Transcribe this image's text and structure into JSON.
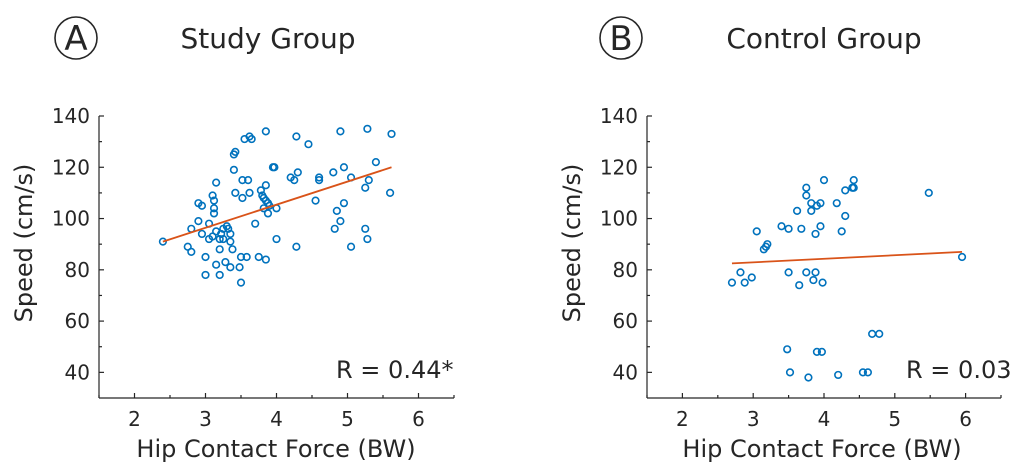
{
  "chart_data": [
    {
      "type": "scatter",
      "panel": "A",
      "title": "Study Group",
      "xlabel": "Hip Contact Force (BW)",
      "ylabel": "Speed (cm/s)",
      "xlim": [
        1.5,
        6.5
      ],
      "ylim": [
        30,
        140
      ],
      "xticks": [
        2,
        3,
        4,
        5,
        6
      ],
      "yticks": [
        40,
        60,
        80,
        100,
        120,
        140
      ],
      "annotation": "R = 0.44*",
      "marker_color": "#0072BD",
      "fit_color": "#D95319",
      "fit_line": {
        "x": [
          2.4,
          5.62
        ],
        "y": [
          91,
          120
        ]
      },
      "points": [
        [
          2.4,
          91
        ],
        [
          2.75,
          89
        ],
        [
          2.8,
          87
        ],
        [
          2.8,
          96
        ],
        [
          2.9,
          106
        ],
        [
          2.95,
          105
        ],
        [
          2.9,
          99
        ],
        [
          2.95,
          94
        ],
        [
          3.0,
          85
        ],
        [
          3.0,
          78
        ],
        [
          3.05,
          98
        ],
        [
          3.05,
          92
        ],
        [
          3.1,
          93
        ],
        [
          3.1,
          109
        ],
        [
          3.12,
          107
        ],
        [
          3.12,
          104
        ],
        [
          3.12,
          102
        ],
        [
          3.15,
          114
        ],
        [
          3.15,
          95
        ],
        [
          3.15,
          82
        ],
        [
          3.2,
          92
        ],
        [
          3.2,
          88
        ],
        [
          3.2,
          78
        ],
        [
          3.22,
          94
        ],
        [
          3.25,
          96
        ],
        [
          3.25,
          92
        ],
        [
          3.28,
          83
        ],
        [
          3.3,
          97
        ],
        [
          3.32,
          96
        ],
        [
          3.35,
          94
        ],
        [
          3.35,
          91
        ],
        [
          3.35,
          81
        ],
        [
          3.38,
          88
        ],
        [
          3.4,
          125
        ],
        [
          3.42,
          126
        ],
        [
          3.4,
          119
        ],
        [
          3.42,
          110
        ],
        [
          3.48,
          81
        ],
        [
          3.5,
          75
        ],
        [
          3.5,
          85
        ],
        [
          3.52,
          108
        ],
        [
          3.52,
          115
        ],
        [
          3.55,
          131
        ],
        [
          3.58,
          85
        ],
        [
          3.6,
          115
        ],
        [
          3.62,
          132
        ],
        [
          3.62,
          110
        ],
        [
          3.65,
          131
        ],
        [
          3.7,
          98
        ],
        [
          3.75,
          85
        ],
        [
          3.78,
          111
        ],
        [
          3.8,
          109
        ],
        [
          3.82,
          104
        ],
        [
          3.82,
          108
        ],
        [
          3.85,
          134
        ],
        [
          3.85,
          113
        ],
        [
          3.85,
          107
        ],
        [
          3.85,
          84
        ],
        [
          3.88,
          106
        ],
        [
          3.88,
          102
        ],
        [
          3.9,
          105
        ],
        [
          3.95,
          120
        ],
        [
          3.97,
          120
        ],
        [
          4.0,
          104
        ],
        [
          4.0,
          92
        ],
        [
          4.2,
          116
        ],
        [
          4.25,
          115
        ],
        [
          4.28,
          132
        ],
        [
          4.3,
          118
        ],
        [
          4.28,
          89
        ],
        [
          4.45,
          129
        ],
        [
          4.55,
          107
        ],
        [
          4.6,
          115
        ],
        [
          4.6,
          116
        ],
        [
          4.8,
          118
        ],
        [
          4.85,
          103
        ],
        [
          4.82,
          96
        ],
        [
          4.9,
          134
        ],
        [
          4.9,
          99
        ],
        [
          4.95,
          106
        ],
        [
          4.95,
          120
        ],
        [
          5.05,
          89
        ],
        [
          5.05,
          116
        ],
        [
          5.25,
          96
        ],
        [
          5.25,
          112
        ],
        [
          5.28,
          92
        ],
        [
          5.28,
          135
        ],
        [
          5.3,
          115
        ],
        [
          5.4,
          122
        ],
        [
          5.6,
          110
        ],
        [
          5.62,
          133
        ]
      ]
    },
    {
      "type": "scatter",
      "panel": "B",
      "title": "Control Group",
      "xlabel": "Hip Contact Force (BW)",
      "ylabel": "Speed (cm/s)",
      "xlim": [
        1.5,
        6.5
      ],
      "ylim": [
        30,
        140
      ],
      "xticks": [
        2,
        3,
        4,
        5,
        6
      ],
      "yticks": [
        40,
        60,
        80,
        100,
        120,
        140
      ],
      "annotation": "R = 0.03",
      "marker_color": "#0072BD",
      "fit_color": "#D95319",
      "fit_line": {
        "x": [
          2.7,
          5.95
        ],
        "y": [
          82.5,
          87
        ]
      },
      "points": [
        [
          2.7,
          75
        ],
        [
          2.82,
          79
        ],
        [
          2.88,
          75
        ],
        [
          2.98,
          77
        ],
        [
          3.05,
          95
        ],
        [
          3.15,
          88
        ],
        [
          3.18,
          89
        ],
        [
          3.2,
          90
        ],
        [
          3.4,
          97
        ],
        [
          3.5,
          96
        ],
        [
          3.5,
          79
        ],
        [
          3.48,
          49
        ],
        [
          3.52,
          40
        ],
        [
          3.62,
          103
        ],
        [
          3.65,
          74
        ],
        [
          3.68,
          96
        ],
        [
          3.75,
          112
        ],
        [
          3.75,
          109
        ],
        [
          3.75,
          79
        ],
        [
          3.78,
          38
        ],
        [
          3.82,
          103
        ],
        [
          3.82,
          106
        ],
        [
          3.85,
          76
        ],
        [
          3.88,
          94
        ],
        [
          3.88,
          79
        ],
        [
          3.9,
          105
        ],
        [
          3.9,
          48
        ],
        [
          3.95,
          106
        ],
        [
          3.95,
          97
        ],
        [
          3.97,
          48
        ],
        [
          3.98,
          75
        ],
        [
          4.0,
          115
        ],
        [
          4.18,
          106
        ],
        [
          4.2,
          39
        ],
        [
          4.25,
          95
        ],
        [
          4.3,
          101
        ],
        [
          4.3,
          111
        ],
        [
          4.4,
          112
        ],
        [
          4.42,
          115
        ],
        [
          4.42,
          112
        ],
        [
          4.55,
          40
        ],
        [
          4.62,
          40
        ],
        [
          4.68,
          55
        ],
        [
          4.78,
          55
        ],
        [
          5.48,
          110
        ],
        [
          5.95,
          85
        ]
      ]
    }
  ]
}
